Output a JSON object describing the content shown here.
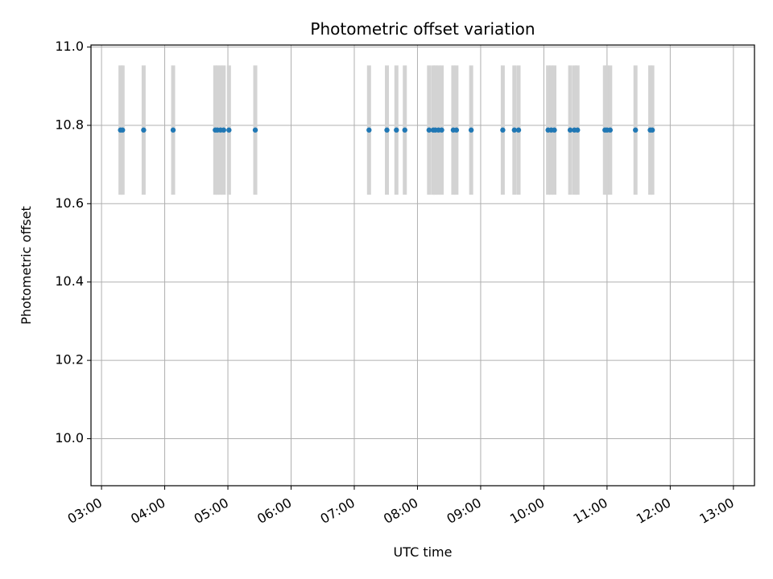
{
  "chart_data": {
    "type": "scatter",
    "title": "Photometric offset variation",
    "xlabel": "UTC time",
    "ylabel": "Photometric offset",
    "x_ticks": [
      "03:00",
      "04:00",
      "05:00",
      "06:00",
      "07:00",
      "08:00",
      "09:00",
      "10:00",
      "11:00",
      "12:00",
      "13:00"
    ],
    "y_ticks": [
      "10.0",
      "10.2",
      "10.4",
      "10.6",
      "10.8",
      "11.0"
    ],
    "xlim": [
      "02:50",
      "13:20"
    ],
    "ylim": [
      9.88,
      11.005
    ],
    "grid": true,
    "colors": {
      "points": "#1f77b4",
      "error_bars": "#d3d3d3",
      "grid": "#b0b0b0"
    },
    "series": [
      {
        "x": [
          "03:18",
          "03:20",
          "03:40",
          "04:08",
          "04:48",
          "04:50",
          "04:53",
          "04:56",
          "05:01",
          "05:26",
          "07:14",
          "07:31",
          "07:40",
          "07:48",
          "08:11",
          "08:15",
          "08:17",
          "08:20",
          "08:23",
          "08:34",
          "08:37",
          "08:51",
          "09:21",
          "09:32",
          "09:36",
          "10:04",
          "10:07",
          "10:10",
          "10:25",
          "10:29",
          "10:32",
          "10:58",
          "11:00",
          "11:03",
          "11:27",
          "11:41",
          "11:43"
        ],
        "y": [
          10.788,
          10.788,
          10.788,
          10.788,
          10.788,
          10.788,
          10.788,
          10.788,
          10.788,
          10.788,
          10.788,
          10.788,
          10.788,
          10.788,
          10.788,
          10.788,
          10.788,
          10.788,
          10.788,
          10.788,
          10.788,
          10.788,
          10.788,
          10.788,
          10.788,
          10.788,
          10.788,
          10.788,
          10.788,
          10.788,
          10.788,
          10.788,
          10.788,
          10.788,
          10.788,
          10.788,
          10.788
        ],
        "yerr": [
          0.165,
          0.165,
          0.165,
          0.165,
          0.165,
          0.165,
          0.165,
          0.165,
          0.165,
          0.165,
          0.165,
          0.165,
          0.165,
          0.165,
          0.165,
          0.165,
          0.165,
          0.165,
          0.165,
          0.165,
          0.165,
          0.165,
          0.165,
          0.165,
          0.165,
          0.165,
          0.165,
          0.165,
          0.165,
          0.165,
          0.165,
          0.165,
          0.165,
          0.165,
          0.165,
          0.165,
          0.165
        ]
      }
    ]
  }
}
